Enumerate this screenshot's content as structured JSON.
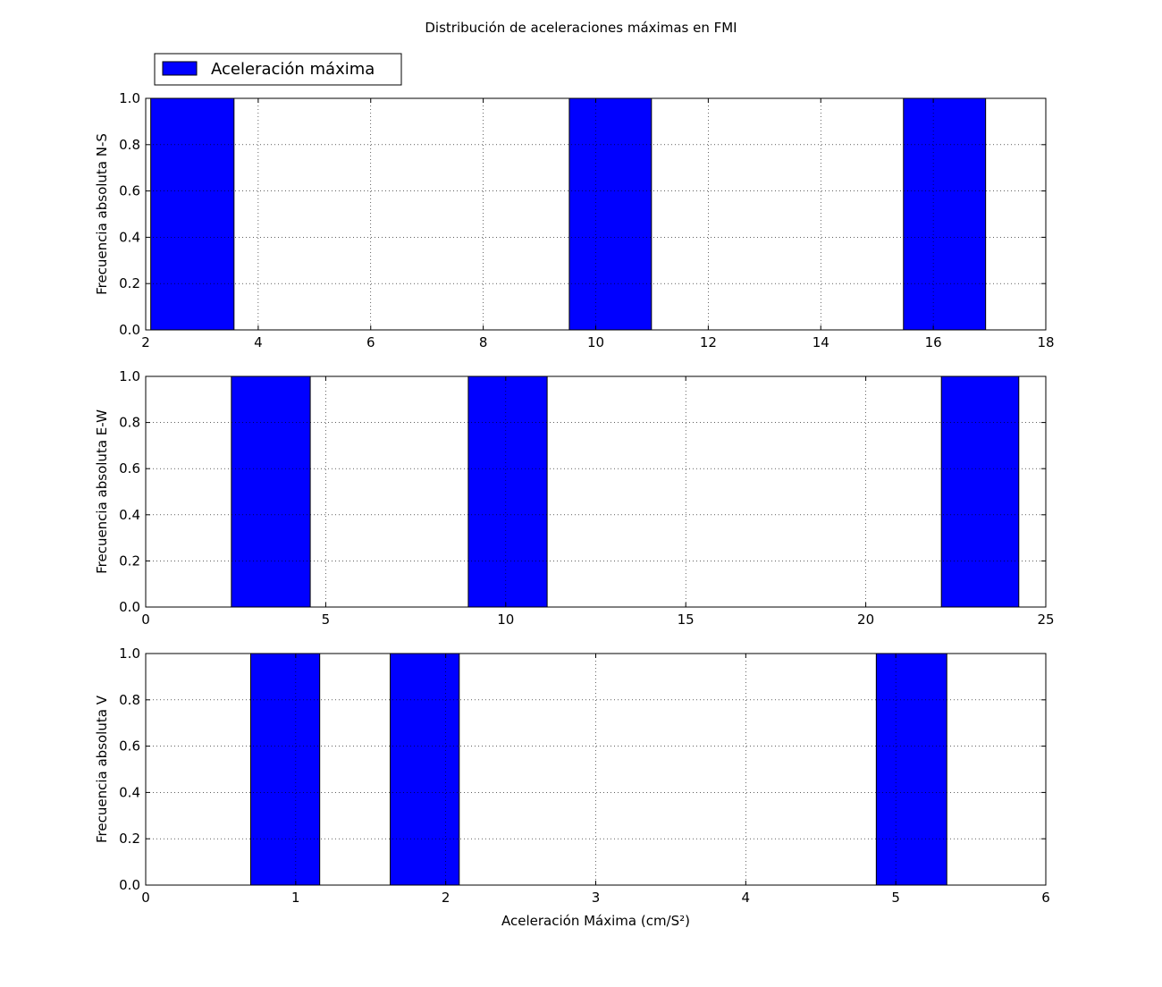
{
  "title": "Distribución de aceleraciones máximas en FMI",
  "legend": {
    "label": "Aceleración máxima",
    "placement": "top-left, above first subplot"
  },
  "colors": {
    "bar_fill": "#0000ff",
    "bar_edge": "#000000"
  },
  "chart_data": [
    {
      "type": "bar",
      "ylabel": "Frecuencia absoluta N-S",
      "xlabel": "",
      "xlim": [
        2,
        18
      ],
      "ylim": [
        0,
        1.0
      ],
      "xticks": [
        "2",
        "4",
        "6",
        "8",
        "10",
        "12",
        "14",
        "16",
        "18"
      ],
      "yticks": [
        "0.0",
        "0.2",
        "0.4",
        "0.6",
        "0.8",
        "1.0"
      ],
      "grid": true,
      "bars": [
        {
          "left": 2.09,
          "right": 3.57,
          "value": 1
        },
        {
          "left": 9.53,
          "right": 10.99,
          "value": 1
        },
        {
          "left": 15.47,
          "right": 16.93,
          "value": 1
        }
      ]
    },
    {
      "type": "bar",
      "ylabel": "Frecuencia absoluta E-W",
      "xlabel": "",
      "xlim": [
        0,
        25
      ],
      "ylim": [
        0,
        1.0
      ],
      "xticks": [
        "0",
        "5",
        "10",
        "15",
        "20",
        "25"
      ],
      "yticks": [
        "0.0",
        "0.2",
        "0.4",
        "0.6",
        "0.8",
        "1.0"
      ],
      "grid": true,
      "bars": [
        {
          "left": 2.38,
          "right": 4.57,
          "value": 1
        },
        {
          "left": 8.96,
          "right": 11.15,
          "value": 1
        },
        {
          "left": 22.1,
          "right": 24.25,
          "value": 1
        }
      ]
    },
    {
      "type": "bar",
      "ylabel": "Frecuencia absoluta V",
      "xlabel": "Aceleración Máxima (cm/S²)",
      "xlim": [
        0,
        6
      ],
      "ylim": [
        0,
        1.0
      ],
      "xticks": [
        "0",
        "1",
        "2",
        "3",
        "4",
        "5",
        "6"
      ],
      "yticks": [
        "0.0",
        "0.2",
        "0.4",
        "0.6",
        "0.8",
        "1.0"
      ],
      "grid": true,
      "bars": [
        {
          "left": 0.7,
          "right": 1.16,
          "value": 1
        },
        {
          "left": 1.63,
          "right": 2.09,
          "value": 1
        },
        {
          "left": 4.87,
          "right": 5.34,
          "value": 1
        }
      ]
    }
  ]
}
